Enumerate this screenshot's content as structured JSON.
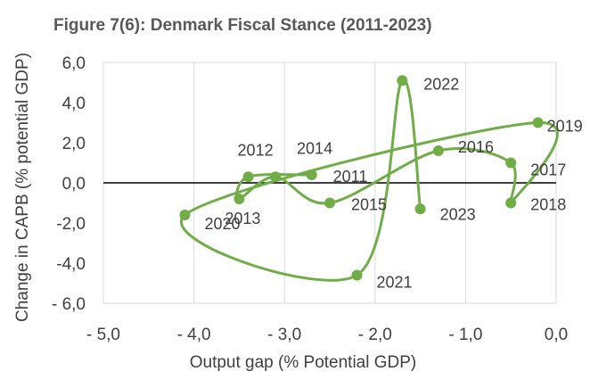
{
  "chart_data": {
    "type": "scatter",
    "title": "Figure 7(6): Denmark Fiscal Stance (2011-2023)",
    "xlabel": "Output gap (% Potential  GDP)",
    "ylabel": "Change in CAPB (% potential  GDP)",
    "xlim": [
      -5.0,
      0.0
    ],
    "ylim": [
      -6.0,
      6.0
    ],
    "x_ticks": [
      -5.0,
      -4.0,
      -3.0,
      -2.0,
      -1.0,
      0.0
    ],
    "x_tick_labels": [
      "- 5,0",
      "- 4,0",
      "- 3,0",
      "- 2,0",
      "- 1,0",
      "0,0"
    ],
    "y_ticks": [
      6.0,
      4.0,
      2.0,
      0.0,
      -2.0,
      -4.0,
      -6.0
    ],
    "y_tick_labels": [
      "6,0",
      "4,0",
      "2,0",
      "0,0",
      "-2,0",
      "-4,0",
      "- 6,0"
    ],
    "series_color": "#70ad47",
    "points": [
      {
        "label": "2011",
        "x": -2.7,
        "y": 0.4
      },
      {
        "label": "2012",
        "x": -3.4,
        "y": 0.3
      },
      {
        "label": "2013",
        "x": -3.5,
        "y": -0.8
      },
      {
        "label": "2014",
        "x": -3.1,
        "y": 0.3
      },
      {
        "label": "2015",
        "x": -2.5,
        "y": -1.0
      },
      {
        "label": "2016",
        "x": -1.3,
        "y": 1.6
      },
      {
        "label": "2017",
        "x": -0.5,
        "y": 1.0
      },
      {
        "label": "2018",
        "x": -0.5,
        "y": -1.0
      },
      {
        "label": "2019",
        "x": -0.2,
        "y": 3.0
      },
      {
        "label": "2020",
        "x": -4.1,
        "y": -1.6
      },
      {
        "label": "2021",
        "x": -2.2,
        "y": -4.6
      },
      {
        "label": "2022",
        "x": -1.7,
        "y": 5.1
      },
      {
        "label": "2023",
        "x": -1.5,
        "y": -1.3
      }
    ]
  }
}
